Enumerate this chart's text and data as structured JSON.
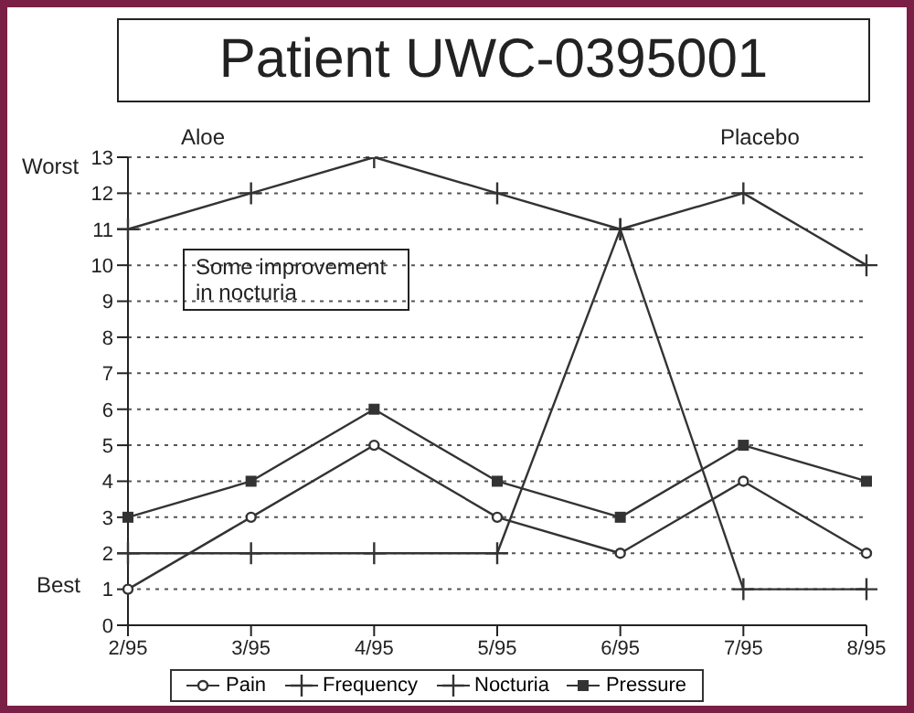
{
  "chart_data": {
    "type": "line",
    "title": "Patient UWC-0395001",
    "categories": [
      "2/95",
      "3/95",
      "4/95",
      "5/95",
      "6/95",
      "7/95",
      "8/95"
    ],
    "series": [
      {
        "name": "Pain",
        "color": "#333333",
        "marker": "circle",
        "values": [
          1,
          3,
          5,
          3,
          2,
          4,
          2
        ]
      },
      {
        "name": "Frequency",
        "color": "#333333",
        "marker": "cross",
        "values": [
          11,
          12,
          13,
          12,
          11,
          12,
          10
        ]
      },
      {
        "name": "Nocturia",
        "color": "#333333",
        "marker": "cross",
        "values": [
          2,
          2,
          2,
          2,
          11,
          1,
          1
        ]
      },
      {
        "name": "Pressure",
        "color": "#333333",
        "marker": "square",
        "values": [
          3,
          4,
          6,
          4,
          3,
          5,
          4
        ]
      }
    ],
    "ylim": [
      0,
      13
    ],
    "yticks": [
      0,
      1,
      2,
      3,
      4,
      5,
      6,
      7,
      8,
      9,
      10,
      11,
      12,
      13
    ],
    "grid": "y",
    "legend": "bottom",
    "line_style": "solid",
    "annotations": [
      "Worst",
      "Best",
      "Aloe",
      "Placebo",
      "Some improvement in nocturia"
    ]
  }
}
